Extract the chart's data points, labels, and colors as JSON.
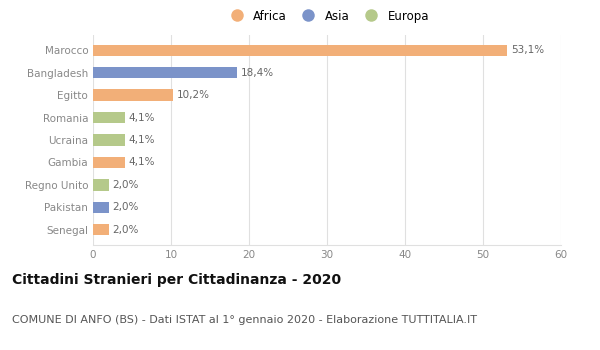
{
  "categories": [
    "Marocco",
    "Bangladesh",
    "Egitto",
    "Romania",
    "Ucraina",
    "Gambia",
    "Regno Unito",
    "Pakistan",
    "Senegal"
  ],
  "values": [
    53.1,
    18.4,
    10.2,
    4.1,
    4.1,
    4.1,
    2.0,
    2.0,
    2.0
  ],
  "labels": [
    "53,1%",
    "18,4%",
    "10,2%",
    "4,1%",
    "4,1%",
    "4,1%",
    "2,0%",
    "2,0%",
    "2,0%"
  ],
  "continents": [
    "Africa",
    "Asia",
    "Africa",
    "Europa",
    "Europa",
    "Africa",
    "Europa",
    "Asia",
    "Africa"
  ],
  "colors": {
    "Africa": "#F2AF78",
    "Asia": "#7B93C9",
    "Europa": "#B5C98A"
  },
  "legend_items": [
    "Africa",
    "Asia",
    "Europa"
  ],
  "xlim": [
    0,
    60
  ],
  "xticks": [
    0,
    10,
    20,
    30,
    40,
    50,
    60
  ],
  "title": "Cittadini Stranieri per Cittadinanza - 2020",
  "subtitle": "COMUNE DI ANFO (BS) - Dati ISTAT al 1° gennaio 2020 - Elaborazione TUTTITALIA.IT",
  "title_fontsize": 10,
  "subtitle_fontsize": 8,
  "label_fontsize": 7.5,
  "tick_fontsize": 7.5,
  "bar_height": 0.5,
  "background_color": "#ffffff",
  "grid_color": "#e0e0e0"
}
